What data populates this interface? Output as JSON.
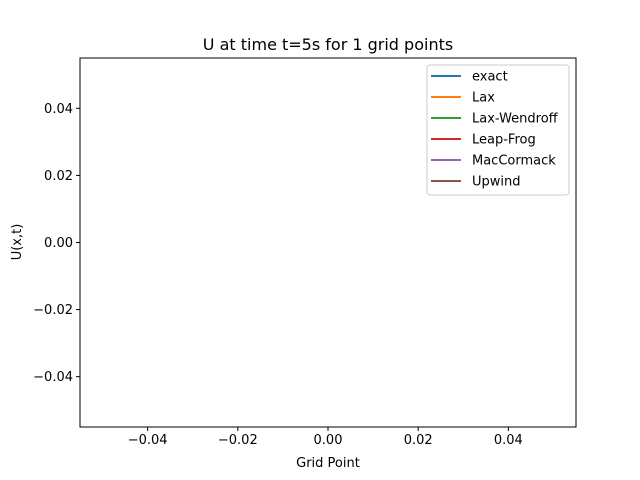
{
  "chart_data": {
    "type": "line",
    "title": "U at time t=5s for 1 grid points",
    "xlabel": "Grid Point",
    "ylabel": "U(x,t)",
    "xlim": [
      -0.055,
      0.055
    ],
    "ylim": [
      -0.055,
      0.055
    ],
    "xticks": [
      -0.04,
      -0.02,
      0.0,
      0.02,
      0.04
    ],
    "xtick_labels": [
      "−0.04",
      "−0.02",
      "0.00",
      "0.02",
      "0.04"
    ],
    "yticks": [
      -0.04,
      -0.02,
      0.0,
      0.02,
      0.04
    ],
    "ytick_labels": [
      "−0.04",
      "−0.02",
      "0.00",
      "0.02",
      "0.04"
    ],
    "grid": false,
    "legend_position": "top-right",
    "series": [
      {
        "name": "exact",
        "color": "#1f77b4",
        "x": [],
        "y": []
      },
      {
        "name": "Lax",
        "color": "#ff7f0e",
        "x": [],
        "y": []
      },
      {
        "name": "Lax-Wendroff",
        "color": "#2ca02c",
        "x": [],
        "y": []
      },
      {
        "name": "Leap-Frog",
        "color": "#d62728",
        "x": [],
        "y": []
      },
      {
        "name": "MacCormack",
        "color": "#9467bd",
        "x": [],
        "y": []
      },
      {
        "name": "Upwind",
        "color": "#8c564b",
        "x": [],
        "y": []
      }
    ]
  }
}
